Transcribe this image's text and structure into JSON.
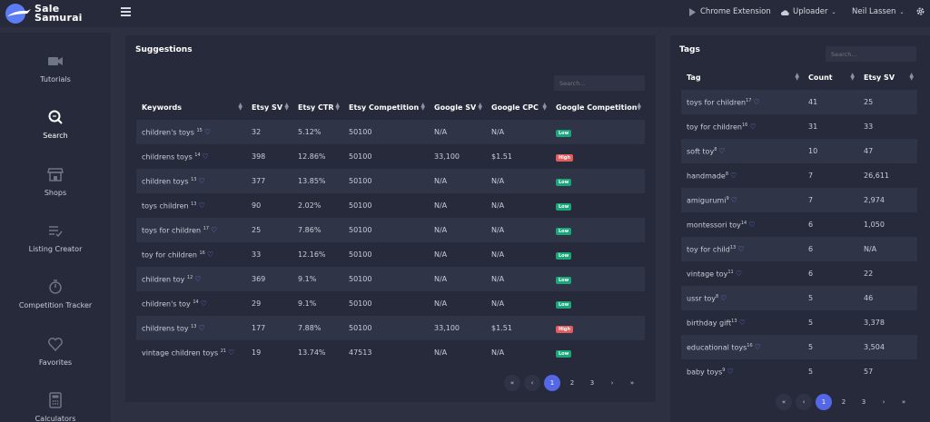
{
  "brand": {
    "name_line1": "Sale",
    "name_line2": "Samurai"
  },
  "topbar": {
    "chrome_extension": "Chrome Extension",
    "uploader": "Uploader",
    "user": "Neil Lassen"
  },
  "sidebar": {
    "items": [
      {
        "label": "Tutorials",
        "icon": "video-camera-icon"
      },
      {
        "label": "Search",
        "icon": "search-icon"
      },
      {
        "label": "Shops",
        "icon": "shop-icon"
      },
      {
        "label": "Listing Creator",
        "icon": "list-check-icon"
      },
      {
        "label": "Competition Tracker",
        "icon": "stopwatch-icon"
      },
      {
        "label": "Favorites",
        "icon": "heart-icon"
      },
      {
        "label": "Calculators",
        "icon": "calculator-icon"
      }
    ]
  },
  "suggestions": {
    "title": "Suggestions",
    "search_placeholder": "Search...",
    "columns": [
      "Keywords",
      "Etsy SV",
      "Etsy CTR",
      "Etsy Competition",
      "Google SV",
      "Google CPC",
      "Google Competition"
    ],
    "rows": [
      {
        "keyword": "children's toys",
        "count": "15",
        "etsy_sv": "32",
        "ctr": "5.12%",
        "comp": "50100",
        "gsv": "N/A",
        "cpc": "N/A",
        "gcomp": "Low"
      },
      {
        "keyword": "childrens toys",
        "count": "14",
        "etsy_sv": "398",
        "ctr": "12.86%",
        "comp": "50100",
        "gsv": "33,100",
        "cpc": "$1.51",
        "gcomp": "High"
      },
      {
        "keyword": "children toys",
        "count": "13",
        "etsy_sv": "377",
        "ctr": "13.85%",
        "comp": "50100",
        "gsv": "N/A",
        "cpc": "N/A",
        "gcomp": "Low"
      },
      {
        "keyword": "toys children",
        "count": "13",
        "etsy_sv": "90",
        "ctr": "2.02%",
        "comp": "50100",
        "gsv": "N/A",
        "cpc": "N/A",
        "gcomp": "Low"
      },
      {
        "keyword": "toys for children",
        "count": "17",
        "etsy_sv": "25",
        "ctr": "7.86%",
        "comp": "50100",
        "gsv": "N/A",
        "cpc": "N/A",
        "gcomp": "Low"
      },
      {
        "keyword": "toy for children",
        "count": "16",
        "etsy_sv": "33",
        "ctr": "12.16%",
        "comp": "50100",
        "gsv": "N/A",
        "cpc": "N/A",
        "gcomp": "Low"
      },
      {
        "keyword": "children toy",
        "count": "12",
        "etsy_sv": "369",
        "ctr": "9.1%",
        "comp": "50100",
        "gsv": "N/A",
        "cpc": "N/A",
        "gcomp": "Low"
      },
      {
        "keyword": "children's toy",
        "count": "14",
        "etsy_sv": "29",
        "ctr": "9.1%",
        "comp": "50100",
        "gsv": "N/A",
        "cpc": "N/A",
        "gcomp": "Low"
      },
      {
        "keyword": "childrens toy",
        "count": "13",
        "etsy_sv": "177",
        "ctr": "7.88%",
        "comp": "50100",
        "gsv": "33,100",
        "cpc": "$1.51",
        "gcomp": "High"
      },
      {
        "keyword": "vintage children toys",
        "count": "21",
        "etsy_sv": "19",
        "ctr": "13.74%",
        "comp": "47513",
        "gsv": "N/A",
        "cpc": "N/A",
        "gcomp": "Low"
      }
    ],
    "pager": [
      "«",
      "‹",
      "1",
      "2",
      "3",
      "›",
      "»"
    ],
    "active_page": "1"
  },
  "tags": {
    "title": "Tags",
    "search_placeholder": "Search...",
    "columns": [
      "Tag",
      "Count",
      "Etsy SV"
    ],
    "rows": [
      {
        "tag": "toys for children",
        "sup": "17",
        "count": "41",
        "etsy_sv": "25"
      },
      {
        "tag": "toy for children",
        "sup": "16",
        "count": "31",
        "etsy_sv": "33"
      },
      {
        "tag": "soft toy",
        "sup": "8",
        "count": "10",
        "etsy_sv": "47"
      },
      {
        "tag": "handmade",
        "sup": "8",
        "count": "7",
        "etsy_sv": "26,611"
      },
      {
        "tag": "amigurumi",
        "sup": "9",
        "count": "7",
        "etsy_sv": "2,974"
      },
      {
        "tag": "montessori toy",
        "sup": "14",
        "count": "6",
        "etsy_sv": "1,050"
      },
      {
        "tag": "toy for child",
        "sup": "13",
        "count": "6",
        "etsy_sv": "N/A"
      },
      {
        "tag": "vintage toy",
        "sup": "11",
        "count": "6",
        "etsy_sv": "22"
      },
      {
        "tag": "ussr toy",
        "sup": "8",
        "count": "5",
        "etsy_sv": "46"
      },
      {
        "tag": "birthday gift",
        "sup": "13",
        "count": "5",
        "etsy_sv": "3,378"
      },
      {
        "tag": "educational toys",
        "sup": "16",
        "count": "5",
        "etsy_sv": "3,504"
      },
      {
        "tag": "baby toys",
        "sup": "9",
        "count": "5",
        "etsy_sv": "57"
      }
    ],
    "pager": [
      "«",
      "‹",
      "1",
      "2",
      "3",
      "›",
      "»"
    ],
    "active_page": "1"
  },
  "colors": {
    "accent": "#5468e7",
    "low": "#19a67a",
    "high": "#e45c5c",
    "heart": "#6e8df8"
  }
}
